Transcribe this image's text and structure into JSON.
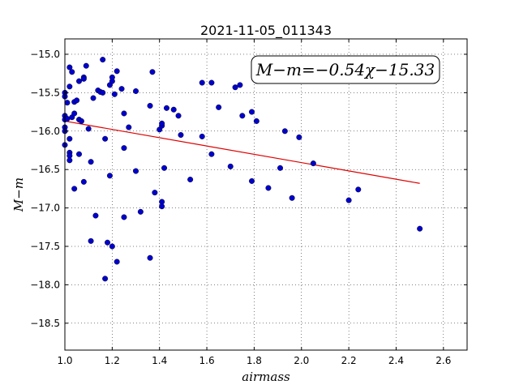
{
  "chart_data": {
    "type": "scatter",
    "title": "2021-11-05_011343",
    "xlabel": "airmass",
    "ylabel": "M−m",
    "xlim": [
      1.0,
      2.7
    ],
    "ylim": [
      -18.85,
      -14.8
    ],
    "y_inverted": true,
    "grid": true,
    "x_ticks": [
      1.0,
      1.2,
      1.4,
      1.6,
      1.8,
      2.0,
      2.2,
      2.4,
      2.6
    ],
    "x_tick_labels": [
      "1.0",
      "1.2",
      "1.4",
      "1.6",
      "1.8",
      "2.0",
      "2.2",
      "2.4",
      "2.6"
    ],
    "y_ticks": [
      -15.0,
      -15.5,
      -16.0,
      -16.5,
      -17.0,
      -17.5,
      -18.0,
      -18.5
    ],
    "y_tick_labels": [
      "−15.0",
      "−15.5",
      "−16.0",
      "−16.5",
      "−17.0",
      "−17.5",
      "−18.0",
      "−18.5"
    ],
    "annotation": "M−m=−0.54χ−15.33",
    "point_color": "#0000cc",
    "fit_color": "#dd0000",
    "fit": {
      "slope": -0.54,
      "intercept": -15.33,
      "x_range": [
        1.0,
        2.5
      ]
    },
    "x": [
      1.0,
      1.0,
      1.0,
      1.0,
      1.0,
      1.0,
      1.0,
      1.01,
      1.01,
      1.02,
      1.02,
      1.02,
      1.02,
      1.02,
      1.02,
      1.03,
      1.03,
      1.04,
      1.04,
      1.04,
      1.05,
      1.06,
      1.06,
      1.06,
      1.07,
      1.08,
      1.08,
      1.08,
      1.09,
      1.1,
      1.11,
      1.11,
      1.12,
      1.13,
      1.14,
      1.15,
      1.16,
      1.16,
      1.17,
      1.17,
      1.18,
      1.19,
      1.19,
      1.2,
      1.2,
      1.2,
      1.21,
      1.22,
      1.22,
      1.24,
      1.25,
      1.25,
      1.25,
      1.27,
      1.3,
      1.3,
      1.32,
      1.36,
      1.36,
      1.37,
      1.38,
      1.4,
      1.41,
      1.41,
      1.41,
      1.41,
      1.42,
      1.43,
      1.46,
      1.48,
      1.49,
      1.53,
      1.58,
      1.58,
      1.62,
      1.62,
      1.65,
      1.7,
      1.72,
      1.74,
      1.75,
      1.79,
      1.79,
      1.81,
      1.86,
      1.91,
      1.93,
      1.96,
      1.99,
      2.05,
      2.2,
      2.24,
      2.5
    ],
    "y": [
      -15.5,
      -15.55,
      -15.8,
      -15.95,
      -16.0,
      -16.18,
      -15.85,
      -15.63,
      -15.84,
      -15.42,
      -15.17,
      -16.1,
      -16.28,
      -16.32,
      -16.38,
      -15.82,
      -15.23,
      -15.62,
      -16.75,
      -15.77,
      -15.6,
      -15.35,
      -16.3,
      -15.85,
      -15.87,
      -15.3,
      -15.32,
      -16.66,
      -15.15,
      -15.97,
      -16.4,
      -17.43,
      -15.57,
      -17.1,
      -15.47,
      -15.49,
      -15.07,
      -15.5,
      -17.92,
      -16.1,
      -17.45,
      -15.4,
      -16.58,
      -15.35,
      -15.3,
      -17.5,
      -15.52,
      -15.22,
      -17.7,
      -15.45,
      -15.77,
      -16.22,
      -17.12,
      -15.95,
      -15.48,
      -16.52,
      -17.05,
      -15.67,
      -17.65,
      -15.23,
      -16.8,
      -15.98,
      -15.93,
      -15.9,
      -16.92,
      -16.98,
      -16.48,
      -15.7,
      -15.72,
      -15.8,
      -16.05,
      -16.63,
      -15.37,
      -16.07,
      -15.37,
      -16.3,
      -15.69,
      -16.46,
      -15.43,
      -15.4,
      -15.8,
      -15.75,
      -16.65,
      -15.87,
      -16.74,
      -16.48,
      -16.0,
      -16.87,
      -16.08,
      -16.42,
      -16.9,
      -16.76,
      -17.27
    ]
  }
}
